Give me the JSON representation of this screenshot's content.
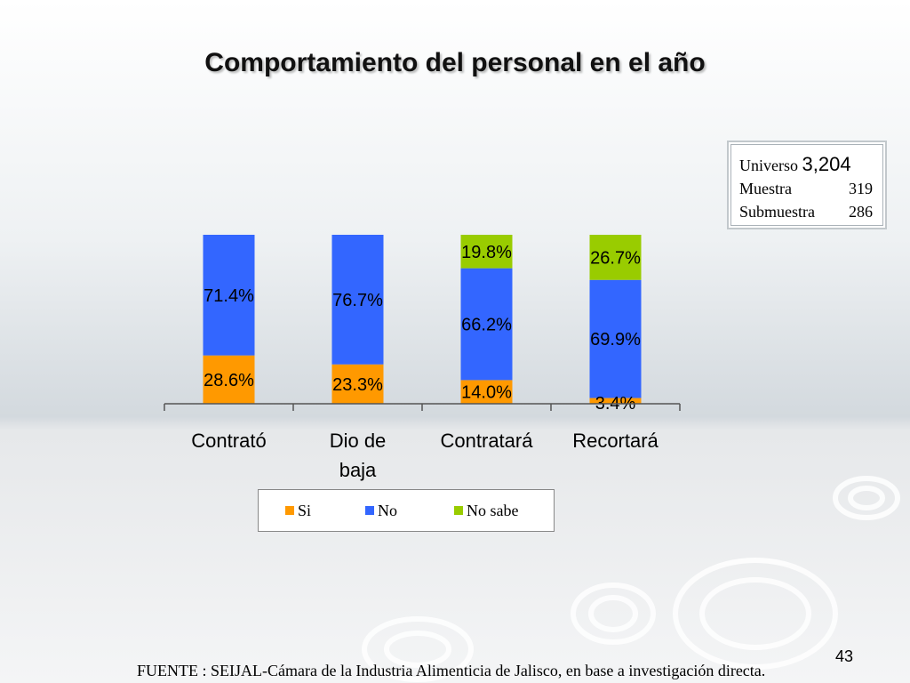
{
  "slide": {
    "title": "Comportamiento del personal en el año",
    "source": "FUENTE : SEIJAL-Cámara de la Industria Alimenticia de Jalisco,  en base a investigación directa.",
    "page_number": "43"
  },
  "info_box": {
    "rows": [
      {
        "label": "Universo",
        "value": "3,204"
      },
      {
        "label": "Muestra",
        "value": "319"
      },
      {
        "label": "Submuestra",
        "value": "286"
      }
    ]
  },
  "chart_data": {
    "type": "bar",
    "stacked": true,
    "categories": [
      "Contrató",
      "Dio de baja",
      "Contratará",
      "Recortará"
    ],
    "series": [
      {
        "name": "Si",
        "color": "#ff9900",
        "values": [
          28.6,
          23.3,
          14.0,
          3.4
        ],
        "labels": [
          "28.6%",
          "23.3%",
          "14.0%",
          "3.4%"
        ]
      },
      {
        "name": "No",
        "color": "#3366ff",
        "values": [
          71.4,
          76.7,
          66.2,
          69.9
        ],
        "labels": [
          "71.4%",
          "76.7%",
          "66.2%",
          "69.9%"
        ]
      },
      {
        "name": "No sabe",
        "color": "#99cc00",
        "values": [
          0,
          0,
          19.8,
          26.7
        ],
        "labels": [
          "",
          "",
          "19.8%",
          "26.7%"
        ]
      }
    ],
    "ylim": [
      0,
      100
    ],
    "legend_position": "bottom",
    "grid": false
  }
}
